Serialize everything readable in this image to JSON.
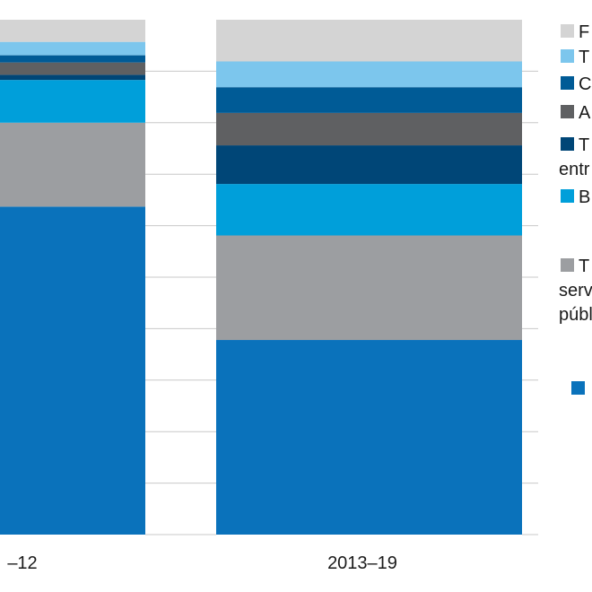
{
  "chart_data": {
    "type": "bar",
    "stacked": true,
    "normalized": true,
    "ylim": [
      0,
      100
    ],
    "grid": true,
    "legend_position": "right",
    "categories": [
      "–12",
      "2013–19"
    ],
    "series": [
      {
        "label": "",
        "color": "#0a72bb",
        "values": [
          63.7,
          37.8
        ]
      },
      {
        "label": "T",
        "label_lines": [
          "T",
          "serv",
          "públ"
        ],
        "color": "#9c9ea1",
        "values": [
          16.3,
          20.3
        ]
      },
      {
        "label": "B",
        "color": "#009fda",
        "values": [
          8.3,
          10.0
        ]
      },
      {
        "label": "T",
        "label_lines": [
          "T",
          "entr"
        ],
        "color": "#004677",
        "values": [
          1.0,
          7.5
        ]
      },
      {
        "label": "A",
        "color": "#5f6062",
        "values": [
          2.4,
          6.3
        ]
      },
      {
        "label": "C",
        "color": "#005b96",
        "values": [
          1.4,
          5.0
        ]
      },
      {
        "label": "T",
        "color": "#7cc6ed",
        "values": [
          2.6,
          5.0
        ]
      },
      {
        "label": "F",
        "color": "#d4d4d4",
        "values": [
          4.3,
          8.1
        ]
      }
    ]
  }
}
